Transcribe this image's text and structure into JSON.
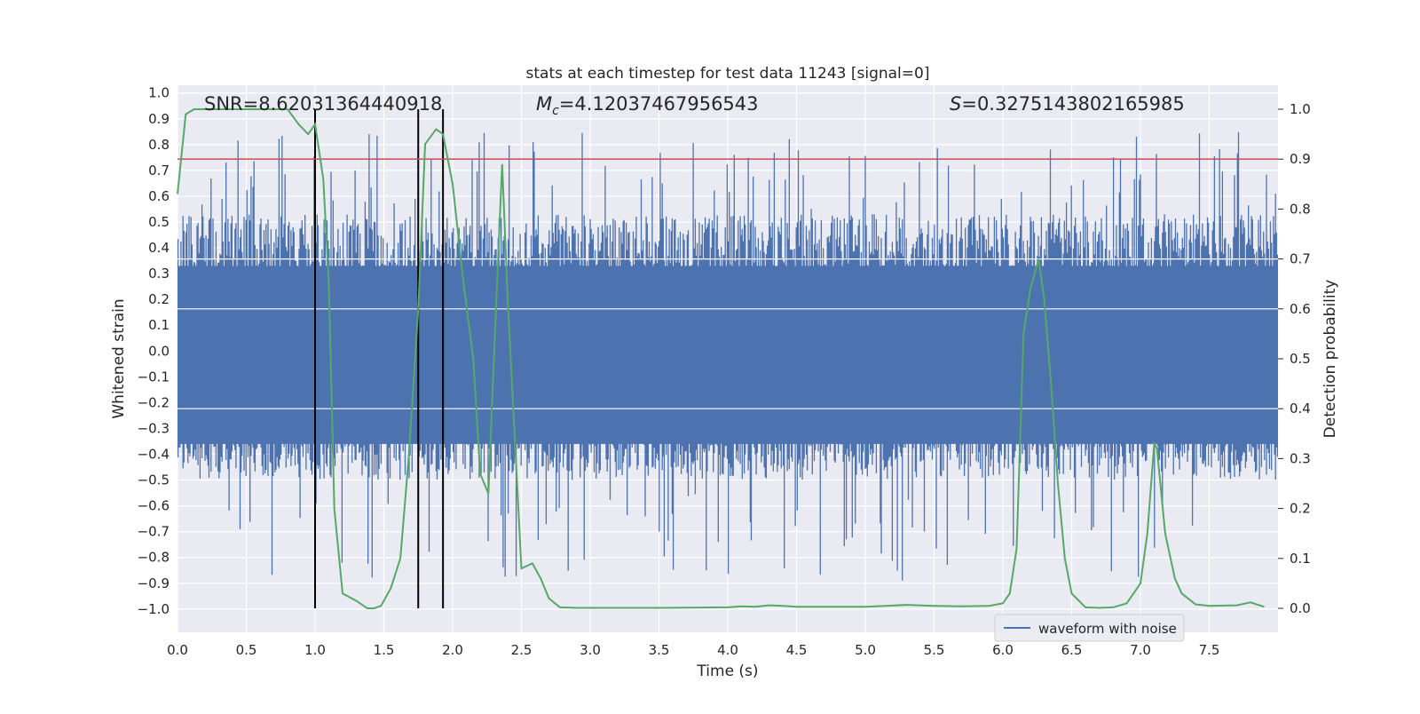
{
  "chart_data": {
    "type": "line",
    "title": "stats at each timestep for test data 11243 [signal=0]",
    "xlabel": "Time (s)",
    "ylabel": "Whitened strain",
    "y2label": "Detection probability",
    "xlim": [
      0,
      8
    ],
    "ylim": [
      -1.09,
      1.03
    ],
    "y2lim": [
      -0.048,
      1.048
    ],
    "xticks": [
      "0.0",
      "0.5",
      "1.0",
      "1.5",
      "2.0",
      "2.5",
      "3.0",
      "3.5",
      "4.0",
      "4.5",
      "5.0",
      "5.5",
      "6.0",
      "6.5",
      "7.0",
      "7.5"
    ],
    "yticks": [
      "1.0",
      "0.9",
      "0.8",
      "0.7",
      "0.6",
      "0.5",
      "0.4",
      "0.3",
      "0.2",
      "0.1",
      "0.0",
      "−0.1",
      "−0.2",
      "−0.3",
      "−0.4",
      "−0.5",
      "−0.6",
      "−0.7",
      "−0.8",
      "−0.9",
      "−1.0"
    ],
    "y2ticks": [
      "1.0",
      "0.9",
      "0.8",
      "0.7",
      "0.6",
      "0.5",
      "0.4",
      "0.3",
      "0.2",
      "0.1",
      "0.0"
    ],
    "grid": true,
    "legend": {
      "position": "lower-right",
      "entries": [
        "waveform with noise"
      ]
    },
    "annotations": {
      "snr": "SNR=8.62031364440918",
      "mc_symbol": "M",
      "mc_sub": "c",
      "mc_value": "=4.12037467956543",
      "s_symbol": "S",
      "s_value": "=0.3275143802165985"
    },
    "threshold": {
      "y2": 0.9,
      "color": "#c44e52"
    },
    "vlines_x": [
      1.0,
      1.75,
      1.93
    ],
    "waveform": {
      "name": "waveform with noise",
      "color": "#4c72b0",
      "description_range": [
        -1.0,
        0.93
      ]
    },
    "probability": {
      "color": "#55a868",
      "x": [
        0.0,
        0.06,
        0.12,
        0.18,
        0.24,
        0.3,
        0.4,
        0.5,
        0.6,
        0.7,
        0.8,
        0.88,
        0.95,
        1.0,
        1.06,
        1.1,
        1.14,
        1.2,
        1.3,
        1.38,
        1.43,
        1.48,
        1.55,
        1.62,
        1.68,
        1.75,
        1.8,
        1.88,
        1.93,
        2.0,
        2.08,
        2.15,
        2.2,
        2.26,
        2.3,
        2.36,
        2.4,
        2.45,
        2.5,
        2.58,
        2.64,
        2.7,
        2.78,
        2.9,
        3.0,
        3.5,
        4.0,
        4.1,
        4.2,
        4.3,
        4.4,
        4.5,
        5.0,
        5.15,
        5.3,
        5.5,
        5.7,
        5.9,
        6.0,
        6.05,
        6.1,
        6.15,
        6.2,
        6.26,
        6.3,
        6.35,
        6.4,
        6.45,
        6.5,
        6.6,
        6.7,
        6.8,
        6.9,
        6.95,
        7.0,
        7.05,
        7.1,
        7.12,
        7.18,
        7.25,
        7.3,
        7.4,
        7.5,
        7.7,
        7.8,
        7.9
      ],
      "y": [
        0.83,
        0.99,
        1.0,
        1.0,
        1.0,
        1.0,
        1.0,
        1.0,
        1.0,
        1.0,
        1.0,
        0.97,
        0.95,
        0.97,
        0.86,
        0.65,
        0.2,
        0.03,
        0.015,
        0.0,
        0.0,
        0.005,
        0.04,
        0.1,
        0.3,
        0.6,
        0.93,
        0.96,
        0.95,
        0.85,
        0.65,
        0.5,
        0.27,
        0.23,
        0.5,
        0.89,
        0.62,
        0.35,
        0.08,
        0.09,
        0.06,
        0.02,
        0.002,
        0.001,
        0.001,
        0.001,
        0.002,
        0.004,
        0.003,
        0.006,
        0.005,
        0.003,
        0.003,
        0.005,
        0.007,
        0.005,
        0.004,
        0.005,
        0.01,
        0.03,
        0.12,
        0.55,
        0.64,
        0.7,
        0.62,
        0.45,
        0.25,
        0.1,
        0.03,
        0.002,
        0.001,
        0.002,
        0.01,
        0.03,
        0.05,
        0.15,
        0.33,
        0.32,
        0.15,
        0.06,
        0.03,
        0.008,
        0.005,
        0.006,
        0.012,
        0.003
      ]
    }
  }
}
